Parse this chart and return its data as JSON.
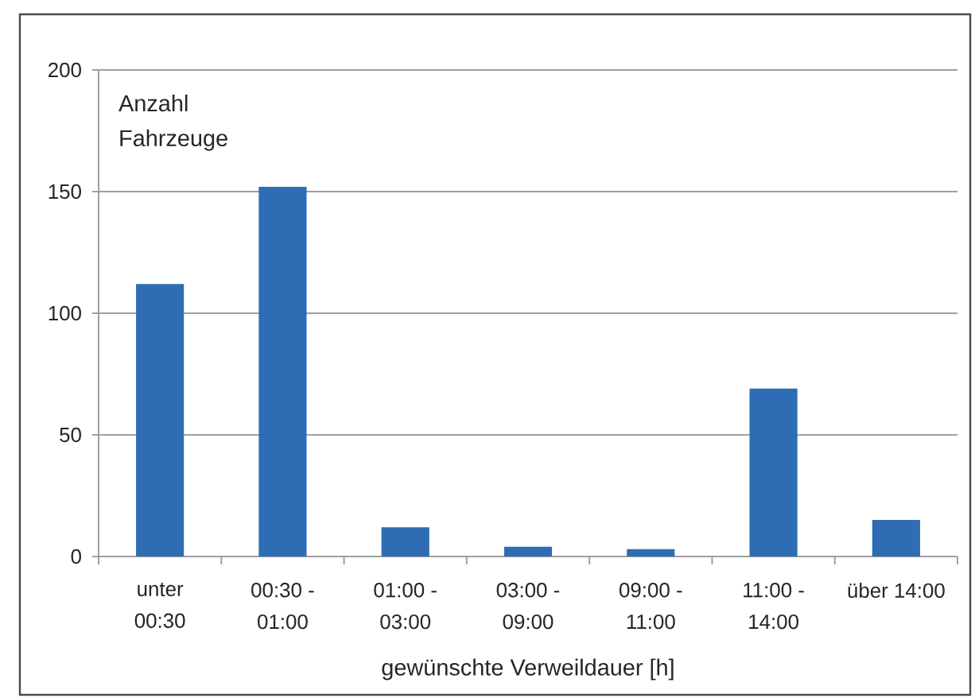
{
  "chart_data": {
    "type": "bar",
    "categories": [
      "unter 00:30",
      "00:30 - 01:00",
      "01:00 - 03:00",
      "03:00 - 09:00",
      "09:00 - 11:00",
      "11:00 - 14:00",
      "über 14:00"
    ],
    "values": [
      112,
      152,
      12,
      4,
      3,
      69,
      15
    ],
    "color": "#2e6db4",
    "ylabel": "Anzahl Fahrzeuge",
    "xlabel": "gewünschte Verweildauer [h]",
    "ylim": [
      0,
      200
    ],
    "yticks": [
      0,
      50,
      100,
      150,
      200
    ],
    "grid": "y"
  }
}
